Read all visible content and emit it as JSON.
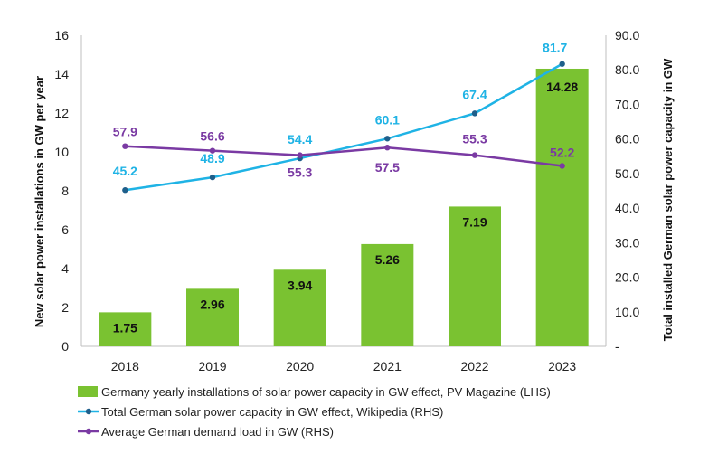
{
  "chart_data": {
    "type": "bar",
    "categories": [
      "2018",
      "2019",
      "2020",
      "2021",
      "2022",
      "2023"
    ],
    "ylabel_left": "New solar power installations in GW per year",
    "ylabel_right": "Total installed German solar power capacity in GW",
    "ylim_left": [
      0,
      16
    ],
    "yticks_left": [
      "0",
      "2",
      "4",
      "6",
      "8",
      "10",
      "12",
      "14",
      "16"
    ],
    "ylim_right": [
      0,
      90
    ],
    "yticks_right": [
      "-",
      "10.0",
      "20.0",
      "30.0",
      "40.0",
      "50.0",
      "60.0",
      "70.0",
      "80.0",
      "90.0"
    ],
    "grid": false,
    "legend_position": "bottom",
    "series": [
      {
        "name": "Germany yearly installations of solar power capacity in GW effect, PV Magazine (LHS)",
        "kind": "bar",
        "axis": "left",
        "color": "#7ac231",
        "values": [
          1.75,
          2.96,
          3.94,
          5.26,
          7.19,
          14.28
        ],
        "labels": [
          "1.75",
          "2.96",
          "3.94",
          "5.26",
          "7.19",
          "14.28"
        ]
      },
      {
        "name": "Total German solar power capacity in GW effect, Wikipedia (RHS)",
        "kind": "line",
        "axis": "right",
        "color": "#1fb3e5",
        "marker_color": "#1f5f8b",
        "values": [
          45.2,
          48.9,
          54.4,
          60.1,
          67.4,
          81.7
        ],
        "labels": [
          "45.2",
          "48.9",
          "54.4",
          "60.1",
          "67.4",
          "81.7"
        ]
      },
      {
        "name": "Average German demand load in GW (RHS)",
        "kind": "line",
        "axis": "right",
        "color": "#7a3aa3",
        "marker_color": "#7a3aa3",
        "values": [
          57.9,
          56.6,
          55.3,
          57.5,
          55.3,
          52.2
        ],
        "labels": [
          "57.9",
          "56.6",
          "55.3",
          "57.5",
          "55.3",
          "52.2"
        ]
      }
    ]
  }
}
